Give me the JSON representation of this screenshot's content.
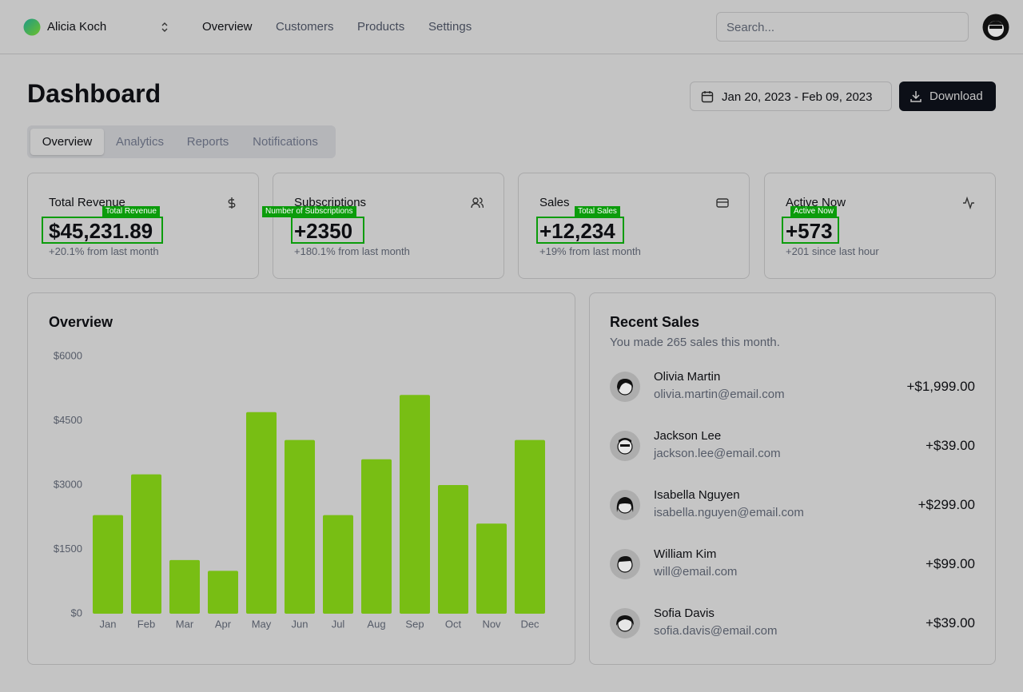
{
  "header": {
    "user": "Alicia Koch",
    "nav": [
      "Overview",
      "Customers",
      "Products",
      "Settings"
    ],
    "search": "Search..."
  },
  "title": "Dashboard",
  "date_range": "Jan 20, 2023 - Feb 09, 2023",
  "download": "Download",
  "tabs": [
    "Overview",
    "Analytics",
    "Reports",
    "Notifications"
  ],
  "cards": [
    {
      "title": "Total Revenue",
      "value": "$45,231.89",
      "note": "+20.1% from last month",
      "annotation": "Total Revenue"
    },
    {
      "title": "Subscriptions",
      "value": "+2350",
      "note": "+180.1% from last month",
      "annotation": "Number of Subscriptions"
    },
    {
      "title": "Sales",
      "value": "+12,234",
      "note": "+19% from last month",
      "annotation": "Total Sales"
    },
    {
      "title": "Active Now",
      "value": "+573",
      "note": "+201 since last hour",
      "annotation": "Active Now"
    }
  ],
  "chart_data": {
    "type": "bar",
    "title": "Overview",
    "categories": [
      "Jan",
      "Feb",
      "Mar",
      "Apr",
      "May",
      "Jun",
      "Jul",
      "Aug",
      "Sep",
      "Oct",
      "Nov",
      "Dec"
    ],
    "values": [
      2300,
      3250,
      1250,
      1000,
      4700,
      4050,
      2300,
      3600,
      5100,
      3000,
      2100,
      4050
    ],
    "color": "#78be14",
    "ylim": [
      0,
      6000
    ],
    "yticks": [
      {
        "value": 0,
        "label": "$0"
      },
      {
        "value": 1500,
        "label": "$1500"
      },
      {
        "value": 3000,
        "label": "$3000"
      },
      {
        "value": 4500,
        "label": "$4500"
      },
      {
        "value": 6000,
        "label": "$6000"
      }
    ]
  },
  "recent_sales": {
    "title": "Recent Sales",
    "subtitle": "You made 265 sales this month.",
    "items": [
      {
        "name": "Olivia Martin",
        "email": "olivia.martin@email.com",
        "amount": "+$1,999.00"
      },
      {
        "name": "Jackson Lee",
        "email": "jackson.lee@email.com",
        "amount": "+$39.00"
      },
      {
        "name": "Isabella Nguyen",
        "email": "isabella.nguyen@email.com",
        "amount": "+$299.00"
      },
      {
        "name": "William Kim",
        "email": "will@email.com",
        "amount": "+$99.00"
      },
      {
        "name": "Sofia Davis",
        "email": "sofia.davis@email.com",
        "amount": "+$39.00"
      }
    ]
  }
}
